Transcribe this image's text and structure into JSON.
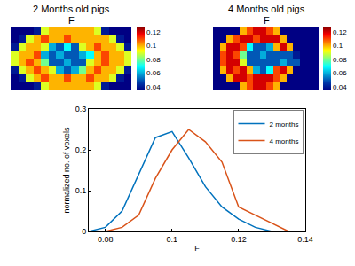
{
  "chart_data": [
    {
      "type": "heatmap",
      "title": "2 Months old pigs",
      "subtitle": "F",
      "color": "jet",
      "tick_labels": false,
      "cells": [
        [
          0.035,
          0.035,
          0.035,
          0.04,
          0.09,
          0.1,
          0.1,
          0.1,
          0.1,
          0.1,
          0.1,
          0.09,
          0.04,
          0.035,
          0.035,
          0.035
        ],
        [
          0.035,
          0.04,
          0.09,
          0.1,
          0.11,
          0.1,
          0.1,
          0.11,
          0.1,
          0.1,
          0.11,
          0.1,
          0.1,
          0.09,
          0.04,
          0.035
        ],
        [
          0.04,
          0.09,
          0.1,
          0.11,
          0.1,
          0.09,
          0.06,
          0.05,
          0.06,
          0.08,
          0.1,
          0.11,
          0.1,
          0.1,
          0.09,
          0.04
        ],
        [
          0.09,
          0.1,
          0.11,
          0.1,
          0.08,
          0.05,
          0.05,
          0.06,
          0.05,
          0.05,
          0.09,
          0.1,
          0.11,
          0.1,
          0.1,
          0.09
        ],
        [
          0.09,
          0.1,
          0.1,
          0.11,
          0.06,
          0.05,
          0.06,
          0.05,
          0.05,
          0.06,
          0.07,
          0.1,
          0.11,
          0.1,
          0.1,
          0.09
        ],
        [
          0.04,
          0.09,
          0.1,
          0.1,
          0.09,
          0.06,
          0.05,
          0.07,
          0.05,
          0.09,
          0.1,
          0.11,
          0.1,
          0.1,
          0.09,
          0.04
        ],
        [
          0.035,
          0.04,
          0.09,
          0.1,
          0.11,
          0.1,
          0.1,
          0.11,
          0.1,
          0.1,
          0.1,
          0.1,
          0.1,
          0.09,
          0.04,
          0.035
        ],
        [
          0.035,
          0.035,
          0.035,
          0.04,
          0.09,
          0.1,
          0.1,
          0.1,
          0.1,
          0.1,
          0.1,
          0.09,
          0.04,
          0.035,
          0.035,
          0.035
        ]
      ],
      "color_range": [
        0.035,
        0.128
      ],
      "color_ticks": [
        0.04,
        0.06,
        0.08,
        0.1,
        0.12
      ]
    },
    {
      "type": "heatmap",
      "title": "4 Months old pigs",
      "subtitle": "F",
      "color": "jet",
      "tick_labels": false,
      "cells": [
        [
          0.035,
          0.035,
          0.035,
          0.035,
          0.1,
          0.11,
          0.12,
          0.12,
          0.11,
          0.1,
          0.035,
          0.035,
          0.035,
          0.035,
          0.035,
          0.035
        ],
        [
          0.035,
          0.035,
          0.1,
          0.12,
          0.12,
          0.11,
          0.12,
          0.12,
          0.12,
          0.11,
          0.1,
          0.035,
          0.035,
          0.035,
          0.035,
          0.035
        ],
        [
          0.035,
          0.1,
          0.12,
          0.11,
          0.12,
          0.1,
          0.06,
          0.05,
          0.07,
          0.11,
          0.12,
          0.1,
          0.035,
          0.035,
          0.035,
          0.035
        ],
        [
          0.035,
          0.11,
          0.12,
          0.12,
          0.09,
          0.05,
          0.05,
          0.05,
          0.05,
          0.05,
          0.06,
          0.05,
          0.05,
          0.035,
          0.035,
          0.035
        ],
        [
          0.035,
          0.11,
          0.12,
          0.11,
          0.08,
          0.05,
          0.05,
          0.06,
          0.05,
          0.05,
          0.05,
          0.05,
          0.04,
          0.035,
          0.035,
          0.035
        ],
        [
          0.035,
          0.1,
          0.12,
          0.12,
          0.11,
          0.07,
          0.05,
          0.05,
          0.06,
          0.1,
          0.12,
          0.1,
          0.035,
          0.035,
          0.035,
          0.035
        ],
        [
          0.035,
          0.035,
          0.1,
          0.11,
          0.12,
          0.12,
          0.11,
          0.12,
          0.12,
          0.12,
          0.1,
          0.035,
          0.035,
          0.035,
          0.035,
          0.035
        ],
        [
          0.035,
          0.035,
          0.035,
          0.035,
          0.1,
          0.11,
          0.12,
          0.12,
          0.11,
          0.1,
          0.035,
          0.035,
          0.035,
          0.035,
          0.035,
          0.035
        ]
      ],
      "color_range": [
        0.035,
        0.128
      ],
      "color_ticks": [
        0.04,
        0.06,
        0.08,
        0.1,
        0.12
      ]
    },
    {
      "type": "line",
      "x": [
        0.075,
        0.08,
        0.085,
        0.09,
        0.095,
        0.1,
        0.105,
        0.11,
        0.115,
        0.12,
        0.125,
        0.13,
        0.135,
        0.14
      ],
      "series": [
        {
          "name": "2 months",
          "color": "#0072bd",
          "values": [
            0,
            0.01,
            0.05,
            0.14,
            0.23,
            0.245,
            0.18,
            0.11,
            0.06,
            0.03,
            0.01,
            0,
            0,
            0
          ]
        },
        {
          "name": "4 months",
          "color": "#d95319",
          "values": [
            0,
            0,
            0.01,
            0.04,
            0.13,
            0.2,
            0.25,
            0.22,
            0.17,
            0.06,
            0.04,
            0.02,
            0,
            0
          ]
        }
      ],
      "x_label": "F",
      "y_label": "normalized no. of voxels",
      "xlim": [
        0.075,
        0.14
      ],
      "xticks": [
        0.08,
        0.1,
        0.12,
        0.14
      ],
      "ylim": [
        0,
        0.3
      ],
      "yticks": [
        0,
        0.1,
        0.2,
        0.3
      ],
      "legend": "upper right",
      "grid": false,
      "line_style": "solid"
    }
  ]
}
